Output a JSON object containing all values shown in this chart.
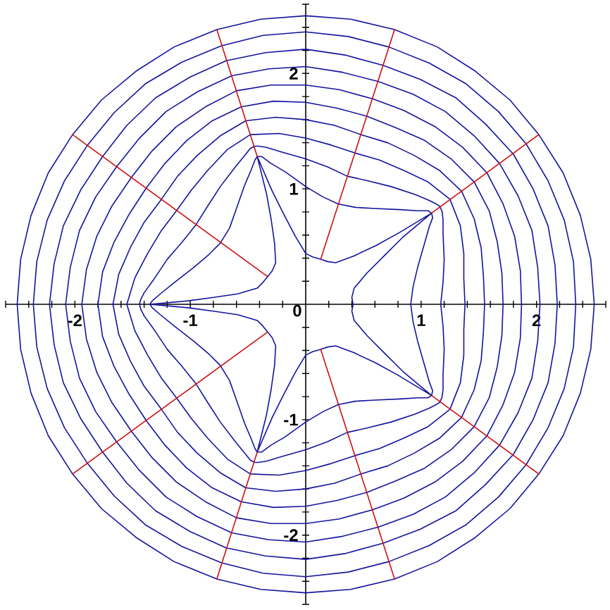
{
  "chart_data": {
    "type": "line",
    "xlim": [
      -2.6,
      2.6
    ],
    "ylim": [
      -2.6,
      2.6
    ],
    "xticks": [
      {
        "value": -2.6,
        "label": null
      },
      {
        "value": -2.4,
        "label": null
      },
      {
        "value": -2.2,
        "label": null
      },
      -2,
      {
        "value": -1.8,
        "label": null
      },
      {
        "value": -1.6,
        "label": null
      },
      {
        "value": -1.4,
        "label": null
      },
      {
        "value": -1.2,
        "label": null
      },
      -1,
      {
        "value": -0.8,
        "label": null
      },
      {
        "value": -0.6,
        "label": null
      },
      {
        "value": -0.4,
        "label": null
      },
      {
        "value": -0.2,
        "label": null
      },
      {
        "value": 0.2,
        "label": null
      },
      {
        "value": 0.4,
        "label": null
      },
      {
        "value": 0.6,
        "label": null
      },
      {
        "value": 0.8,
        "label": null
      },
      1,
      {
        "value": 1.2,
        "label": null
      },
      {
        "value": 1.4,
        "label": null
      },
      {
        "value": 1.6,
        "label": null
      },
      {
        "value": 1.8,
        "label": null
      },
      2,
      {
        "value": 2.2,
        "label": null
      },
      {
        "value": 2.4,
        "label": null
      },
      {
        "value": 2.6,
        "label": null
      }
    ],
    "yticks": [
      {
        "value": -2.6,
        "label": null
      },
      {
        "value": -2.4,
        "label": null
      },
      {
        "value": -2.2,
        "label": null
      },
      -2,
      {
        "value": -1.8,
        "label": null
      },
      {
        "value": -1.6,
        "label": null
      },
      {
        "value": -1.4,
        "label": null
      },
      {
        "value": -1.2,
        "label": null
      },
      -1,
      {
        "value": -0.8,
        "label": null
      },
      {
        "value": -0.6,
        "label": null
      },
      {
        "value": -0.4,
        "label": null
      },
      {
        "value": -0.2,
        "label": null
      },
      0,
      {
        "value": 0.2,
        "label": null
      },
      {
        "value": 0.4,
        "label": null
      },
      {
        "value": 0.6,
        "label": null
      },
      {
        "value": 0.8,
        "label": null
      },
      1,
      {
        "value": 1.2,
        "label": null
      },
      {
        "value": 1.4,
        "label": null
      },
      {
        "value": 1.6,
        "label": null
      },
      {
        "value": 1.8,
        "label": null
      },
      2,
      {
        "value": 2.2,
        "label": null
      },
      {
        "value": 2.4,
        "label": null
      },
      {
        "value": 2.6,
        "label": null
      }
    ],
    "series": [
      {
        "color": "#1414a0",
        "x": [
          0,
          0.39,
          0.77,
          1.14,
          1.47,
          1.77,
          2.02,
          2.23,
          2.38,
          2.47,
          2.5,
          2.47,
          2.38,
          2.23,
          2.02,
          1.77,
          1.47,
          1.14,
          0.77,
          0.39,
          0,
          null,
          0,
          -0.39,
          -0.77,
          -1.14,
          -1.47,
          -1.77,
          -2.02,
          -2.23,
          -2.38,
          -2.47,
          -2.5,
          -2.47,
          -2.38,
          -2.23,
          -2.02,
          -1.77,
          -1.47,
          -1.14,
          -0.77,
          -0.39,
          0
        ],
        "values": [
          -2.5,
          -2.47,
          -2.38,
          -2.23,
          -2.02,
          -1.77,
          -1.47,
          -1.14,
          -0.77,
          -0.39,
          0,
          0.39,
          0.77,
          1.14,
          1.47,
          1.77,
          2.02,
          2.23,
          2.38,
          2.47,
          2.5,
          null,
          -2.5,
          -2.47,
          -2.38,
          -2.23,
          -2.02,
          -1.77,
          -1.47,
          -1.14,
          -0.77,
          -0.39,
          0,
          0.39,
          0.77,
          1.14,
          1.47,
          1.77,
          2.02,
          2.23,
          2.38,
          2.47,
          2.5
        ]
      },
      {
        "color": "#1414a0",
        "x": [
          0,
          0.37,
          0.72,
          1.07,
          1.39,
          1.67,
          1.91,
          2.1,
          2.24,
          2.32,
          2.34,
          2.32,
          2.24,
          2.1,
          1.91,
          1.67,
          1.39,
          1.07,
          0.72,
          0.37,
          0,
          null,
          0,
          -0.37,
          -0.73,
          -1.07,
          -1.39,
          -1.66,
          -1.89,
          -2.09,
          -2.24,
          -2.33,
          -2.36,
          -2.33,
          -2.24,
          -2.09,
          -1.89,
          -1.66,
          -1.39,
          -1.07,
          -0.73,
          -0.37,
          0
        ],
        "values": [
          -2.36,
          -2.32,
          -2.23,
          -2.09,
          -1.91,
          -1.67,
          -1.39,
          -1.07,
          -0.73,
          -0.37,
          0,
          0.37,
          0.73,
          1.07,
          1.39,
          1.67,
          1.91,
          2.09,
          2.23,
          2.32,
          2.36,
          null,
          -2.36,
          -2.33,
          -2.24,
          -2.1,
          -1.91,
          -1.66,
          -1.38,
          -1.07,
          -0.73,
          -0.37,
          0,
          0.37,
          0.73,
          1.07,
          1.38,
          1.66,
          1.91,
          2.1,
          2.24,
          2.33,
          2.36
        ]
      },
      {
        "color": "#1414a0",
        "x": [
          0,
          0.34,
          0.67,
          0.99,
          1.3,
          1.56,
          1.8,
          1.97,
          2.1,
          2.16,
          2.18,
          2.16,
          2.1,
          1.97,
          1.8,
          1.56,
          1.3,
          0.99,
          0.67,
          0.34,
          0,
          null,
          0,
          -0.35,
          -0.69,
          -1.0,
          -1.3,
          -1.55,
          -1.76,
          -1.95,
          -2.1,
          -2.18,
          -2.22,
          -2.18,
          -2.1,
          -1.95,
          -1.76,
          -1.55,
          -1.3,
          -1.0,
          -0.69,
          -0.35,
          0
        ],
        "values": [
          -2.21,
          -2.16,
          -2.07,
          -1.95,
          -1.79,
          -1.56,
          -1.3,
          -1.0,
          -0.68,
          -0.34,
          0,
          0.34,
          0.68,
          1.0,
          1.3,
          1.56,
          1.79,
          1.95,
          2.07,
          2.16,
          2.21,
          null,
          -2.21,
          -2.18,
          -2.11,
          -1.97,
          -1.79,
          -1.55,
          -1.28,
          -0.99,
          -0.68,
          -0.35,
          0,
          0.35,
          0.68,
          0.99,
          1.28,
          1.55,
          1.79,
          1.97,
          2.11,
          2.18,
          2.21
        ]
      },
      {
        "color": "#1414a0",
        "x": [
          0,
          0.32,
          0.63,
          0.93,
          1.21,
          1.46,
          1.68,
          1.84,
          1.96,
          2.01,
          2.03,
          2.01,
          1.96,
          1.84,
          1.68,
          1.46,
          1.21,
          0.93,
          0.63,
          0.32,
          0,
          null,
          0,
          -0.32,
          -0.64,
          -0.94,
          -1.21,
          -1.44,
          -1.64,
          -1.82,
          -1.96,
          -2.04,
          -2.08,
          -2.04,
          -1.96,
          -1.82,
          -1.64,
          -1.44,
          -1.21,
          -0.94,
          -0.64,
          -0.32,
          0
        ],
        "values": [
          -2.06,
          -2.01,
          -1.93,
          -1.82,
          -1.67,
          -1.46,
          -1.22,
          -0.94,
          -0.64,
          -0.32,
          0,
          0.32,
          0.64,
          0.94,
          1.22,
          1.46,
          1.67,
          1.82,
          1.93,
          2.01,
          2.06,
          null,
          -2.06,
          -2.04,
          -1.98,
          -1.84,
          -1.67,
          -1.44,
          -1.19,
          -0.93,
          -0.64,
          -0.32,
          0,
          0.32,
          0.64,
          0.93,
          1.19,
          1.44,
          1.67,
          1.84,
          1.98,
          2.04,
          2.06
        ]
      },
      {
        "color": "#1414a0",
        "x": [
          0,
          0.29,
          0.58,
          0.85,
          1.12,
          1.36,
          1.57,
          1.71,
          1.81,
          1.86,
          1.87,
          1.86,
          1.81,
          1.71,
          1.57,
          1.36,
          1.12,
          0.85,
          0.58,
          0.29,
          0,
          null,
          0,
          -0.3,
          -0.6,
          -0.87,
          -1.12,
          -1.33,
          -1.51,
          -1.68,
          -1.81,
          -1.9,
          -1.94,
          -1.9,
          -1.81,
          -1.68,
          -1.51,
          -1.33,
          -1.12,
          -0.87,
          -0.6,
          -0.3,
          0
        ],
        "values": [
          -1.9,
          -1.86,
          -1.78,
          -1.68,
          -1.54,
          -1.36,
          -1.14,
          -0.87,
          -0.59,
          -0.29,
          0,
          0.29,
          0.59,
          0.87,
          1.14,
          1.36,
          1.54,
          1.68,
          1.78,
          1.86,
          1.9,
          null,
          -1.9,
          -1.9,
          -1.85,
          -1.71,
          -1.54,
          -1.33,
          -1.1,
          -0.85,
          -0.59,
          -0.3,
          0,
          0.3,
          0.59,
          0.85,
          1.1,
          1.33,
          1.54,
          1.71,
          1.85,
          1.9,
          1.9
        ]
      },
      {
        "color": "#1414a0",
        "x": [
          0,
          0.27,
          0.53,
          0.78,
          1.03,
          1.26,
          1.46,
          1.59,
          1.66,
          1.7,
          1.71,
          1.7,
          1.66,
          1.59,
          1.46,
          1.26,
          1.03,
          0.78,
          0.53,
          0.27,
          0,
          null,
          0,
          -0.28,
          -0.56,
          -0.81,
          -1.03,
          -1.22,
          -1.38,
          -1.53,
          -1.66,
          -1.76,
          -1.8,
          -1.76,
          -1.66,
          -1.53,
          -1.38,
          -1.22,
          -1.03,
          -0.81,
          -0.56,
          -0.28,
          0
        ],
        "values": [
          -1.75,
          -1.7,
          -1.63,
          -1.53,
          -1.42,
          -1.26,
          -1.06,
          -0.81,
          -0.54,
          -0.27,
          0,
          0.27,
          0.54,
          0.81,
          1.06,
          1.26,
          1.42,
          1.53,
          1.63,
          1.7,
          1.75,
          null,
          -1.75,
          -1.76,
          -1.71,
          -1.59,
          -1.42,
          -1.22,
          -1.01,
          -0.78,
          -0.54,
          -0.28,
          0,
          0.28,
          0.54,
          0.78,
          1.01,
          1.22,
          1.42,
          1.59,
          1.71,
          1.76,
          1.75
        ]
      },
      {
        "color": "#1414a0",
        "x": [
          0,
          0.25,
          0.48,
          0.71,
          0.94,
          1.16,
          1.35,
          1.46,
          1.52,
          1.54,
          1.55,
          1.54,
          1.52,
          1.46,
          1.35,
          1.16,
          0.94,
          0.71,
          0.48,
          0.25,
          0,
          null,
          0,
          -0.26,
          -0.52,
          -0.74,
          -0.94,
          -1.11,
          -1.25,
          -1.4,
          -1.52,
          -1.62,
          -1.67,
          -1.62,
          -1.52,
          -1.4,
          -1.25,
          -1.11,
          -0.94,
          -0.74,
          -0.52,
          -0.26,
          0
        ],
        "values": [
          -1.6,
          -1.55,
          -1.47,
          -1.4,
          -1.29,
          -1.16,
          -0.98,
          -0.74,
          -0.49,
          -0.24,
          0,
          0.24,
          0.49,
          0.74,
          0.98,
          1.16,
          1.29,
          1.4,
          1.47,
          1.55,
          1.6,
          null,
          -1.6,
          -1.62,
          -1.59,
          -1.46,
          -1.29,
          -1.11,
          -0.91,
          -0.71,
          -0.49,
          -0.26,
          0,
          0.26,
          0.49,
          0.71,
          0.91,
          1.11,
          1.29,
          1.46,
          1.59,
          1.62,
          1.6
        ]
      },
      {
        "color": "#1414a0",
        "x": [
          0,
          0.22,
          0.43,
          0.64,
          0.85,
          1.06,
          1.25,
          1.34,
          1.37,
          1.37,
          1.38,
          1.37,
          1.37,
          1.34,
          1.25,
          1.06,
          0.85,
          0.64,
          0.43,
          0.22,
          0,
          null,
          0,
          -0.23,
          -0.48,
          -0.68,
          -0.85,
          -0.99,
          -1.12,
          -1.25,
          -1.37,
          -1.48,
          -1.55,
          -1.48,
          -1.37,
          -1.25,
          -1.12,
          -0.99,
          -0.85,
          -0.68,
          -0.48,
          -0.23,
          0
        ],
        "values": [
          -1.44,
          -1.38,
          -1.31,
          -1.25,
          -1.16,
          -1.06,
          -0.91,
          -0.68,
          -0.44,
          -0.22,
          0,
          0.22,
          0.44,
          0.68,
          0.91,
          1.06,
          1.16,
          1.25,
          1.31,
          1.38,
          1.44,
          null,
          -1.44,
          -1.48,
          -1.47,
          -1.34,
          -1.16,
          -0.99,
          -0.81,
          -0.64,
          -0.44,
          -0.23,
          0,
          0.23,
          0.44,
          0.64,
          0.81,
          0.99,
          1.16,
          1.34,
          1.47,
          1.48,
          1.44
        ]
      },
      {
        "color": "#1414a0",
        "x": [
          0,
          0.19,
          0.36,
          0.54,
          0.74,
          0.95,
          1.07,
          1.13,
          1.16,
          1.18,
          1.19,
          1.19,
          1.2,
          1.19,
          1.17,
          1.19,
          1.2,
          1.19,
          1.19,
          1.18,
          1.16,
          1.13,
          1.07,
          0.95,
          0.74,
          0.54,
          0.36,
          0.19,
          0,
          null,
          0,
          -0.21,
          -0.34,
          -0.41,
          -0.44,
          -0.48,
          -0.52,
          -0.61,
          -0.74,
          -0.85,
          -0.95,
          -1.07,
          -1.2,
          -1.32,
          -1.4,
          -1.43,
          -1.44,
          -1.43,
          -1.4,
          -1.32,
          -1.2,
          -1.07,
          -0.95,
          -0.85,
          -0.74,
          -0.61,
          -0.52,
          -0.48,
          -0.44,
          -0.41,
          -0.34,
          -0.21,
          0
        ],
        "values": [
          -1.26,
          -1.19,
          -1.11,
          -1.07,
          -1.02,
          -0.95,
          -0.9,
          -0.87,
          -0.85,
          -0.81,
          -0.74,
          -0.61,
          -0.39,
          -0.19,
          0,
          0.19,
          0.39,
          0.61,
          0.74,
          0.81,
          0.85,
          0.87,
          0.9,
          0.95,
          1.02,
          1.07,
          1.11,
          1.19,
          1.26,
          null,
          -1.26,
          -1.32,
          -1.36,
          -1.37,
          -1.37,
          -1.35,
          -1.3,
          -1.19,
          -1.02,
          -0.85,
          -0.69,
          -0.54,
          -0.39,
          -0.21,
          -0.1,
          -0.04,
          0,
          0.04,
          0.1,
          0.21,
          0.39,
          0.54,
          0.69,
          0.85,
          1.02,
          1.19,
          1.3,
          1.35,
          1.37,
          1.37,
          1.36,
          1.32,
          1.26
        ]
      },
      {
        "color": "#1414a0",
        "x": [
          0,
          0.15,
          0.28,
          0.43,
          0.6,
          0.82,
          0.97,
          1.06,
          1.09,
          1.1,
          1.07,
          1.03,
          0.97,
          0.93,
          0.91,
          0.93,
          0.97,
          1.03,
          1.07,
          1.1,
          1.09,
          1.06,
          0.97,
          0.82,
          0.6,
          0.43,
          0.28,
          0.15,
          0,
          null,
          0,
          -0.18,
          -0.3,
          -0.38,
          -0.42,
          -0.44,
          -0.47,
          -0.53,
          -0.6,
          -0.66,
          -0.74,
          -0.84,
          -0.97,
          -1.15,
          -1.26,
          -1.33,
          -1.35,
          -1.33,
          -1.26,
          -1.15,
          -0.97,
          -0.84,
          -0.74,
          -0.66,
          -0.6,
          -0.53,
          -0.47,
          -0.44,
          -0.42,
          -0.38,
          -0.3,
          -0.18,
          0
        ],
        "values": [
          -1.02,
          -0.93,
          -0.87,
          -0.84,
          -0.83,
          -0.82,
          -0.81,
          -0.81,
          -0.79,
          -0.75,
          -0.67,
          -0.53,
          -0.32,
          -0.15,
          0,
          0.15,
          0.32,
          0.53,
          0.67,
          0.75,
          0.79,
          0.81,
          0.81,
          0.82,
          0.83,
          0.84,
          0.87,
          0.93,
          1.02,
          null,
          -1.02,
          -1.15,
          -1.22,
          -1.28,
          -1.28,
          -1.25,
          -1.17,
          -1.03,
          -0.83,
          -0.66,
          -0.53,
          -0.43,
          -0.32,
          -0.18,
          -0.09,
          -0.03,
          0,
          0.03,
          0.09,
          0.18,
          0.32,
          0.43,
          0.53,
          0.66,
          0.83,
          1.03,
          1.17,
          1.25,
          1.28,
          1.28,
          1.22,
          1.15,
          1.02
        ]
      },
      {
        "color": "#1414a0",
        "x": [
          0,
          0.06,
          0.13,
          0.19,
          0.26,
          0.42,
          0.61,
          0.81,
          1.09,
          0.84,
          0.68,
          0.53,
          0.42,
          0.4,
          0.41,
          0.4,
          0.42,
          0.53,
          0.68,
          0.84,
          1.09,
          0.81,
          0.61,
          0.42,
          0.26,
          0.19,
          0.13,
          0.06,
          0,
          null,
          0,
          -0.09,
          -0.19,
          -0.29,
          -0.42,
          -0.34,
          -0.3,
          -0.27,
          -0.26,
          -0.29,
          -0.33,
          -0.37,
          -0.42,
          -0.59,
          -0.8,
          -1.02,
          -1.35,
          -1.02,
          -0.8,
          -0.59,
          -0.42,
          -0.37,
          -0.33,
          -0.29,
          -0.26,
          -0.27,
          -0.3,
          -0.34,
          -0.42,
          -0.29,
          -0.19,
          -0.09,
          0
        ],
        "values": [
          -0.44,
          -0.41,
          -0.39,
          -0.37,
          -0.36,
          -0.42,
          -0.51,
          -0.62,
          -0.79,
          -0.58,
          -0.42,
          -0.27,
          -0.14,
          -0.06,
          0,
          0.06,
          0.14,
          0.27,
          0.42,
          0.58,
          0.79,
          0.62,
          0.51,
          0.42,
          0.36,
          0.37,
          0.39,
          0.41,
          0.44,
          null,
          -0.44,
          -0.59,
          -0.78,
          -0.98,
          -1.28,
          -0.96,
          -0.74,
          -0.53,
          -0.36,
          -0.29,
          -0.24,
          -0.19,
          -0.14,
          -0.09,
          -0.06,
          -0.03,
          0,
          0.03,
          0.06,
          0.09,
          0.14,
          0.19,
          0.24,
          0.29,
          0.36,
          0.53,
          0.74,
          0.96,
          1.28,
          0.98,
          0.78,
          0.59,
          0.44
        ]
      },
      {
        "color": "#cc1010",
        "x": [
          1.09,
          2.02
        ],
        "values": [
          0.79,
          1.47
        ]
      },
      {
        "color": "#cc1010",
        "x": [
          0.13,
          0.77
        ],
        "values": [
          0.39,
          2.38
        ]
      },
      {
        "color": "#cc1010",
        "x": [
          -0.42,
          -0.77
        ],
        "values": [
          1.28,
          2.38
        ]
      },
      {
        "color": "#cc1010",
        "x": [
          -0.33,
          -2.02
        ],
        "values": [
          0.24,
          1.47
        ]
      },
      {
        "color": "#cc1010",
        "x": [
          -0.33,
          -2.02
        ],
        "values": [
          -0.24,
          -1.47
        ]
      },
      {
        "color": "#cc1010",
        "x": [
          -0.42,
          -0.77
        ],
        "values": [
          -1.28,
          -2.38
        ]
      },
      {
        "color": "#cc1010",
        "x": [
          0.13,
          0.77
        ],
        "values": [
          -0.39,
          -2.38
        ]
      },
      {
        "color": "#cc1010",
        "x": [
          1.09,
          2.02
        ],
        "values": [
          -0.79,
          -1.47
        ]
      }
    ]
  }
}
